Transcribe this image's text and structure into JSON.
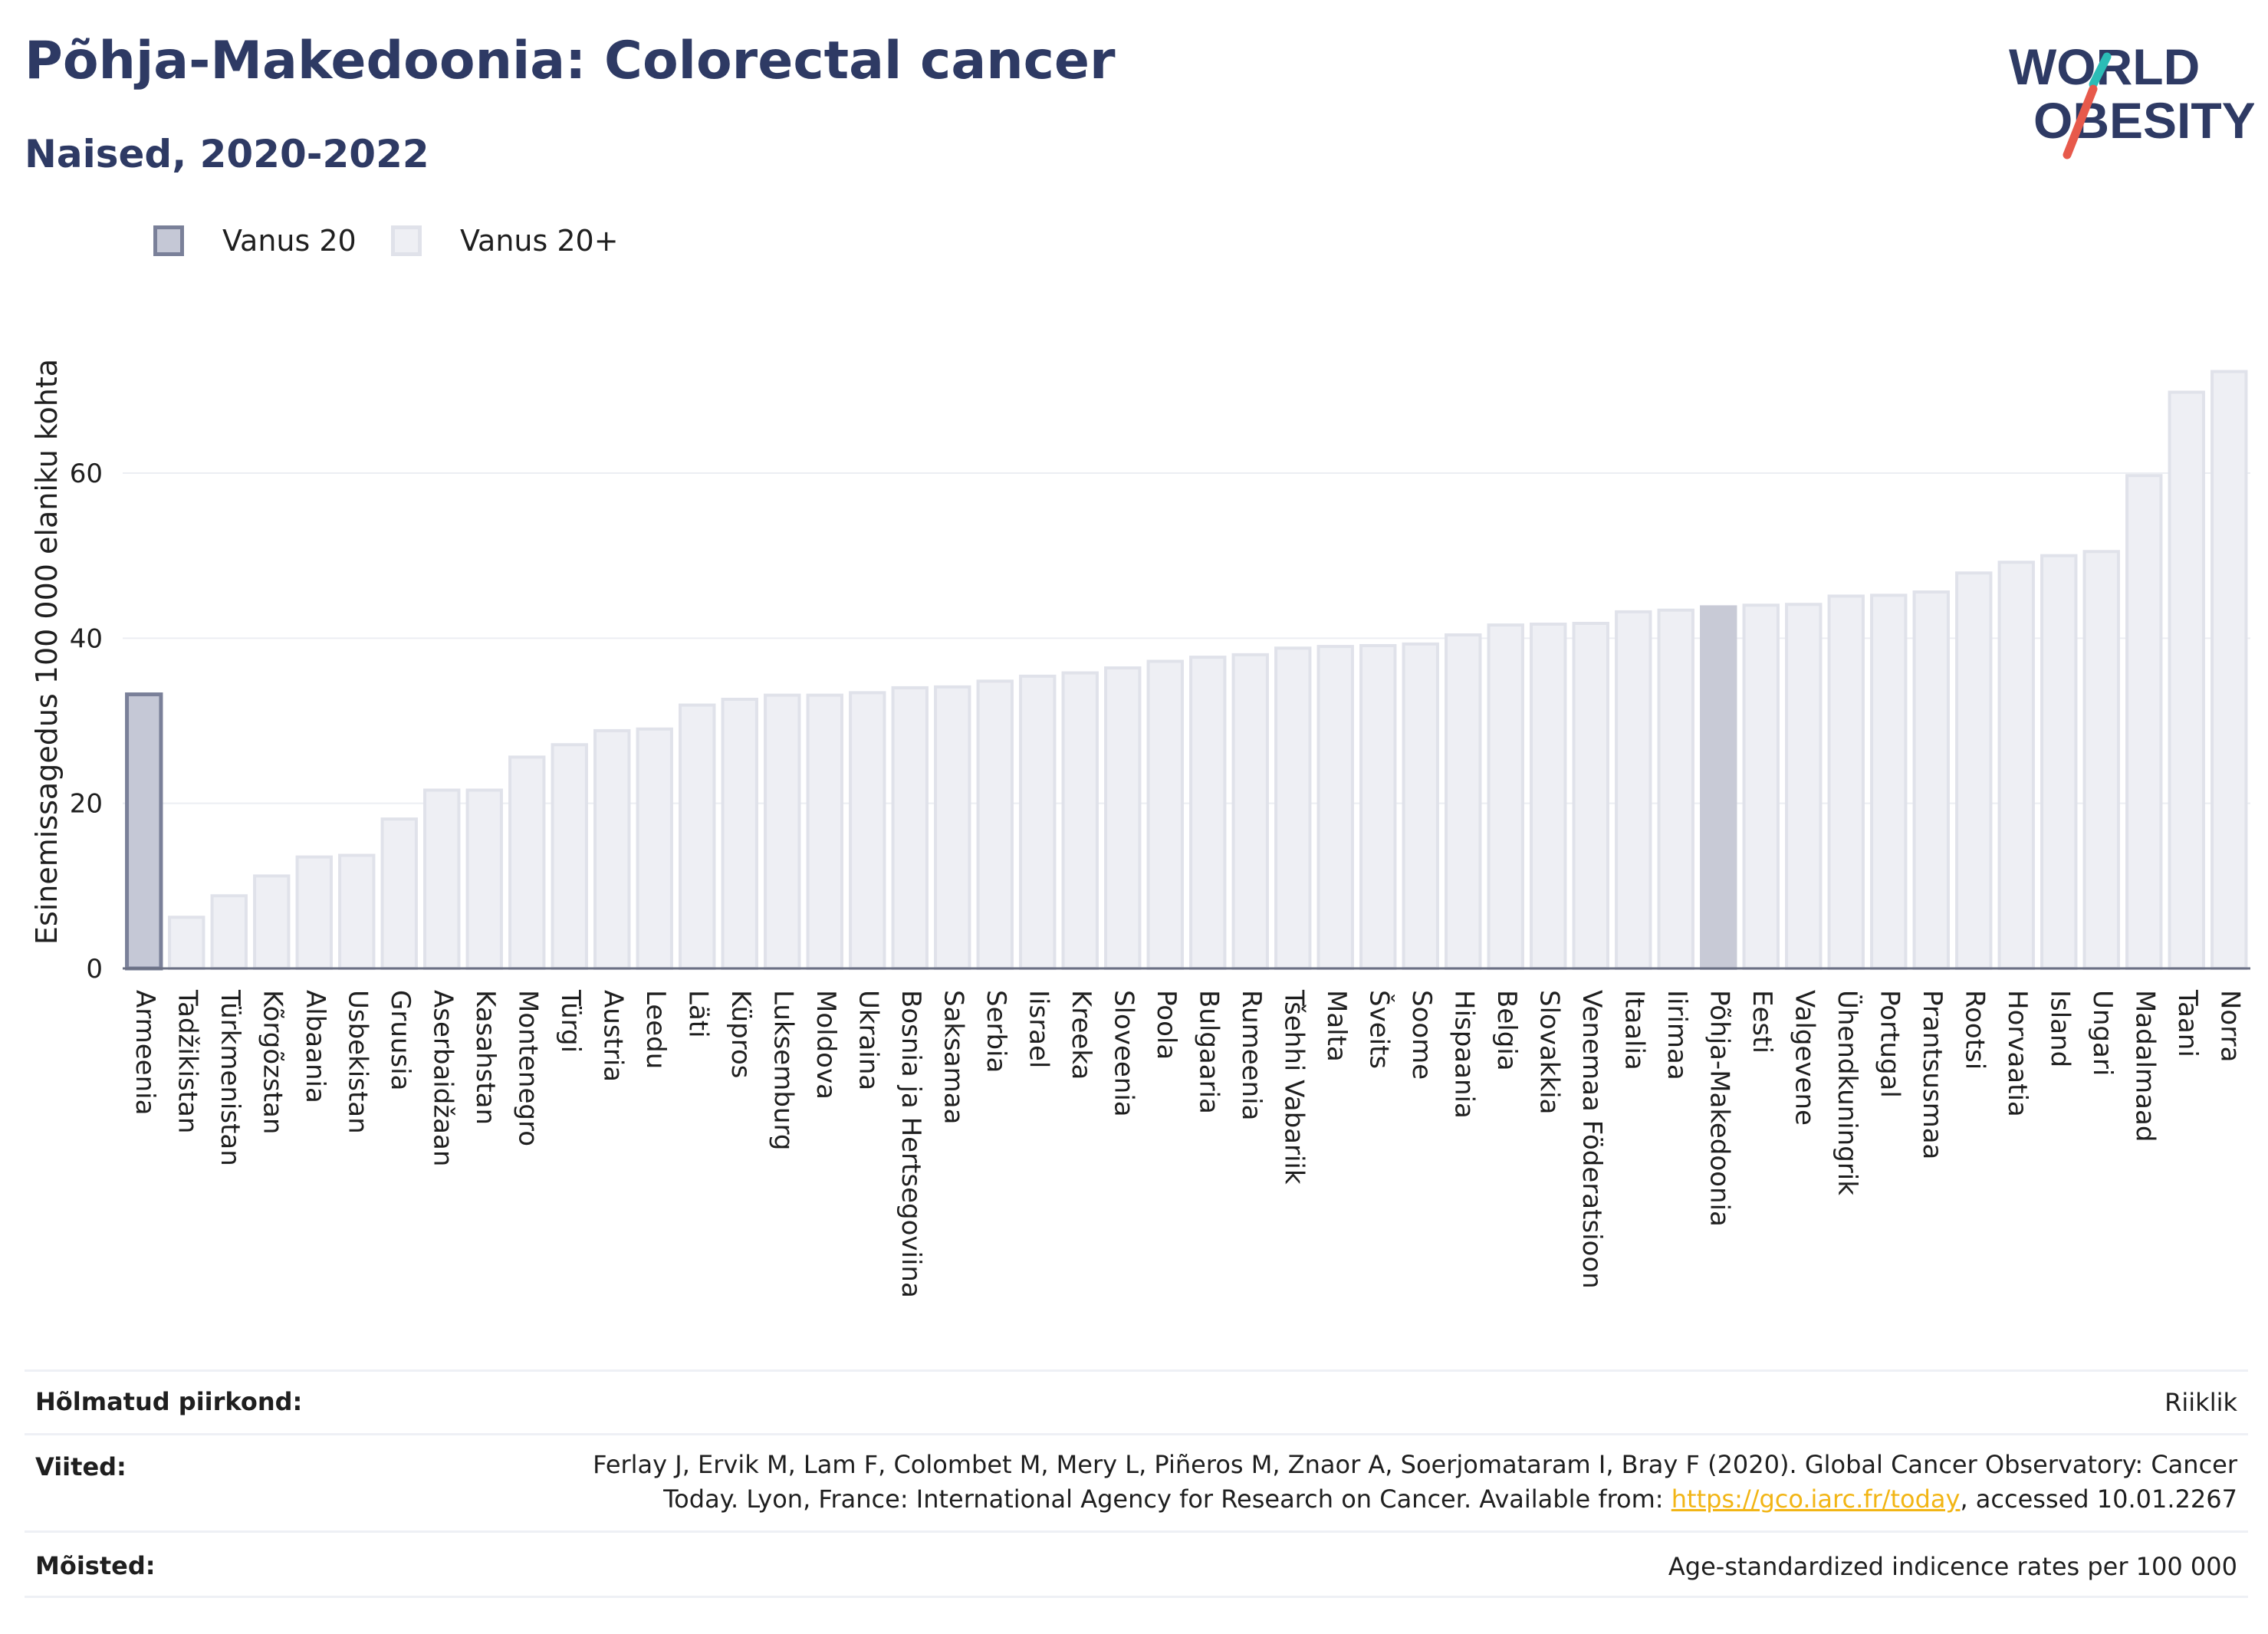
{
  "title": "Põhja-Makedoonia: Colorectal cancer",
  "subtitle": "Naised, 2020-2022",
  "logo": {
    "line1": "WORLD",
    "line2": "OBESITY"
  },
  "colors": {
    "title": "#2e3a64",
    "highlight_fill": "#c5c8d6",
    "highlight_stroke": "#7a8099",
    "bar_fill": "#eeeff4",
    "bar_stroke": "#e0e2ea",
    "selected_fill": "#c8cad6",
    "axis": "#6b7084",
    "grid": "#eceef3",
    "link": "#f2b515",
    "logo_red": "#e7594b",
    "logo_teal": "#2bbcb6"
  },
  "legend": [
    {
      "label": "Vanus 20",
      "swatch": "highlight"
    },
    {
      "label": "Vanus 20+",
      "swatch": "bar"
    }
  ],
  "chart_data": {
    "type": "bar",
    "ylabel": "Esinemissagedus 100 000 elaniku kohta",
    "ylim": [
      0,
      75
    ],
    "yticks": [
      0,
      20,
      40,
      60
    ],
    "grid": true,
    "legend_position": "top-left",
    "categories": [
      "Armeenia",
      "Tadžikistan",
      "Türkmenistan",
      "Kõrgõzstan",
      "Albaania",
      "Usbekistan",
      "Gruusia",
      "Aserbaidžaan",
      "Kasahstan",
      "Montenegro",
      "Türgi",
      "Austria",
      "Leedu",
      "Läti",
      "Küpros",
      "Luksemburg",
      "Moldova",
      "Ukraina",
      "Bosnia ja Hertsegoviina",
      "Saksamaa",
      "Serbia",
      "Iisrael",
      "Kreeka",
      "Sloveenia",
      "Poola",
      "Bulgaaria",
      "Rumeenia",
      "Tšehhi Vabariik",
      "Malta",
      "Šveits",
      "Soome",
      "Hispaania",
      "Belgia",
      "Slovakkia",
      "Venemaa Föderatsioon",
      "Itaalia",
      "Iirimaa",
      "Põhja-Makedoonia",
      "Eesti",
      "Valgevene",
      "Ühendkuningrik",
      "Portugal",
      "Prantsusmaa",
      "Rootsi",
      "Horvaatia",
      "Island",
      "Ungari",
      "Madalmaad",
      "Taani",
      "Norra"
    ],
    "series": [
      {
        "name": "Vanus 20",
        "values": [
          33.2,
          null,
          null,
          null,
          null,
          null,
          null,
          null,
          null,
          null,
          null,
          null,
          null,
          null,
          null,
          null,
          null,
          null,
          null,
          null,
          null,
          null,
          null,
          null,
          null,
          null,
          null,
          null,
          null,
          null,
          null,
          null,
          null,
          null,
          null,
          null,
          null,
          null,
          null,
          null,
          null,
          null,
          null,
          null,
          null,
          null,
          null,
          null,
          null,
          null
        ]
      },
      {
        "name": "Vanus 20+",
        "values": [
          null,
          6.2,
          8.8,
          11.2,
          13.5,
          13.7,
          18.1,
          21.6,
          21.6,
          25.6,
          27.1,
          28.8,
          29.0,
          31.9,
          32.6,
          33.1,
          33.1,
          33.4,
          34.0,
          34.1,
          34.8,
          35.4,
          35.8,
          36.4,
          37.2,
          37.7,
          38.0,
          38.8,
          39.0,
          39.1,
          39.3,
          40.4,
          41.6,
          41.7,
          41.8,
          43.2,
          43.4,
          43.8,
          44.0,
          44.1,
          45.1,
          45.2,
          45.6,
          47.9,
          49.2,
          50.0,
          50.5,
          59.7,
          69.8,
          72.3
        ]
      }
    ],
    "selected": "Põhja-Makedoonia"
  },
  "footer": {
    "rows": [
      {
        "label": "Hõlmatud piirkond:",
        "lines": [
          "Riiklik"
        ]
      },
      {
        "label": "Viited:",
        "lines": [
          "Ferlay J, Ervik M, Lam F, Colombet M, Mery L, Piñeros M, Znaor A, Soerjomataram I, Bray F (2020). Global Cancer Observatory: Cancer"
        ],
        "line2_before": "Today. Lyon, France: International Agency for Research on Cancer. Available from: ",
        "link": "https://gco.iarc.fr/today",
        "line2_after": ", accessed 10.01.2267"
      },
      {
        "label": "Mõisted:",
        "lines": [
          "Age-standardized indicence rates per 100 000"
        ]
      }
    ]
  }
}
